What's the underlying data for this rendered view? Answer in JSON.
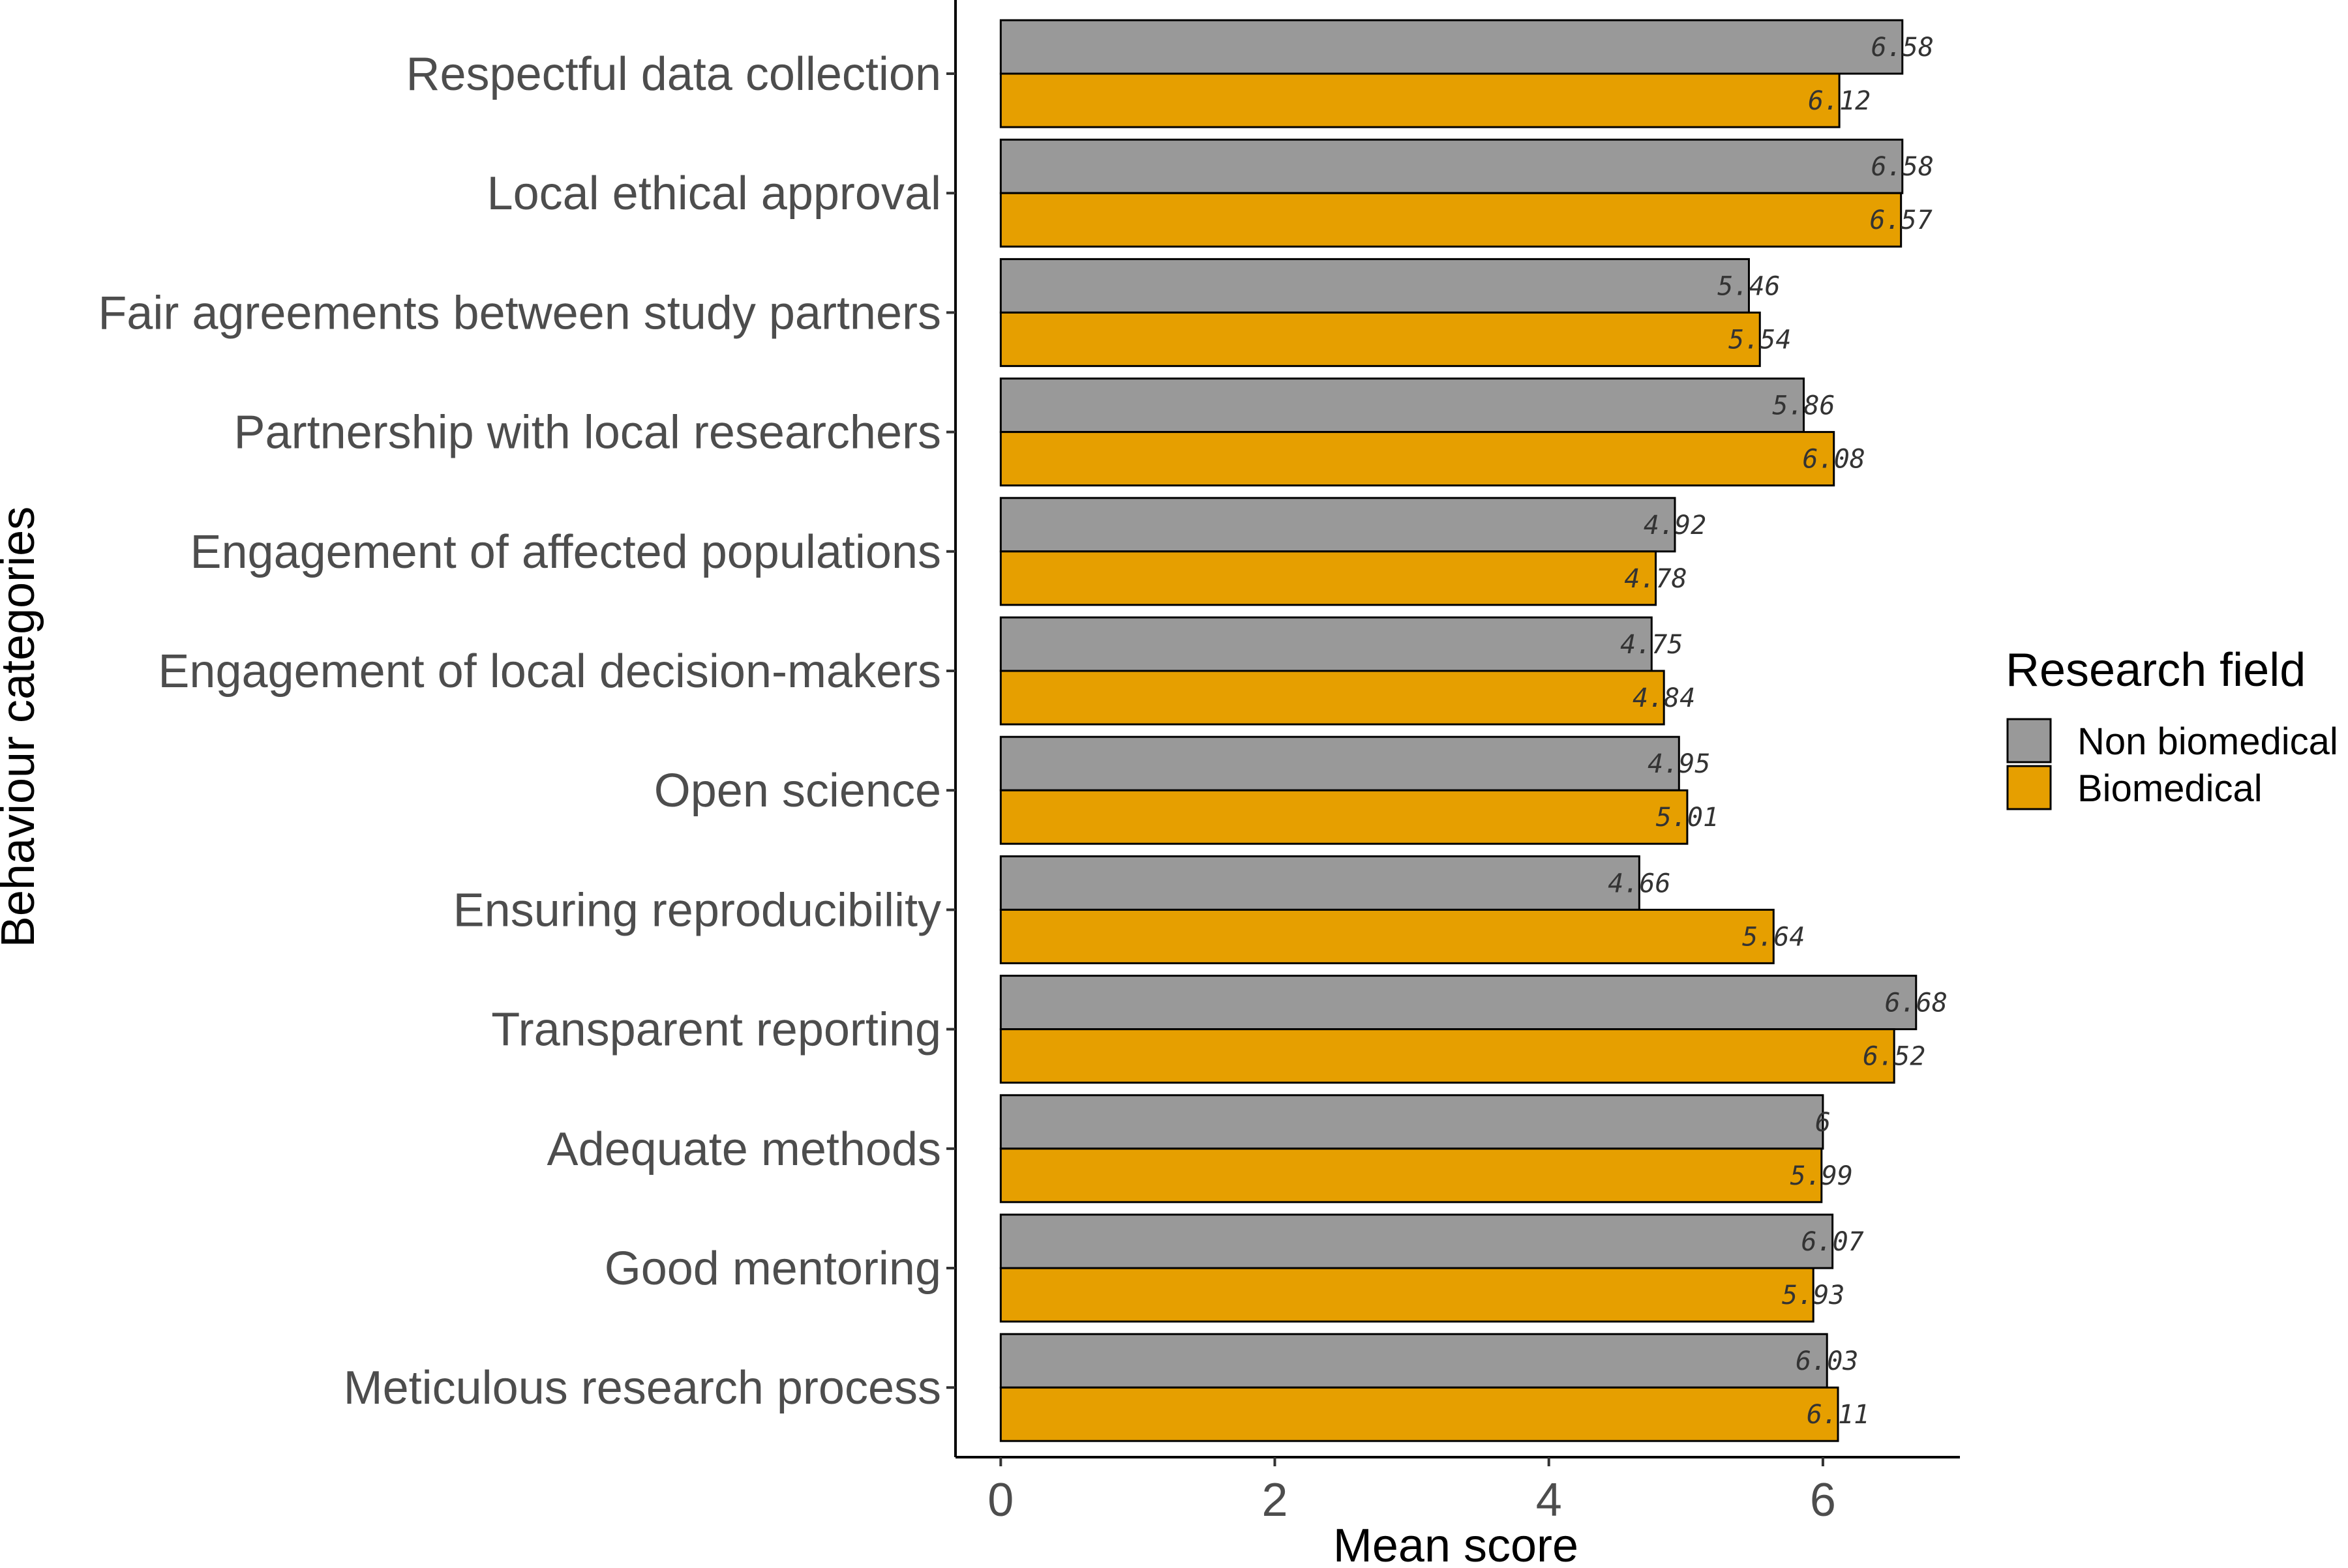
{
  "chart_data": {
    "type": "bar",
    "orientation": "horizontal",
    "title": "",
    "xlabel": "Mean score",
    "ylabel": "Behaviour categories",
    "xlim": [
      -0.33,
      7.0
    ],
    "xticks": [
      "0",
      "2",
      "4",
      "6"
    ],
    "grid": false,
    "legend_position": "right",
    "legend_title": "Research field",
    "categories": [
      "Respectful data collection",
      "Local ethical approval",
      "Fair agreements between study partners",
      "Partnership with local researchers",
      "Engagement of affected populations",
      "Engagement of local decision-makers",
      "Open science",
      "Ensuring reproducibility",
      "Transparent reporting",
      "Adequate methods",
      "Good mentoring",
      "Meticulous research process"
    ],
    "series": [
      {
        "name": "Non biomedical",
        "color": "#999999",
        "values": [
          6.58,
          6.58,
          5.46,
          5.86,
          4.92,
          4.75,
          4.95,
          4.66,
          6.68,
          6,
          6.07,
          6.03
        ],
        "labels": [
          "6.58",
          "6.58",
          "5.46",
          "5.86",
          "4.92",
          "4.75",
          "4.95",
          "4.66",
          "6.68",
          "6",
          "6.07",
          "6.03"
        ]
      },
      {
        "name": "Biomedical",
        "color": "#E69F00",
        "values": [
          6.12,
          6.57,
          5.54,
          6.08,
          4.78,
          4.84,
          5.01,
          5.64,
          6.52,
          5.99,
          5.93,
          6.11
        ],
        "labels": [
          "6.12",
          "6.57",
          "5.54",
          "6.08",
          "4.78",
          "4.84",
          "5.01",
          "5.64",
          "6.52",
          "5.99",
          "5.93",
          "6.11"
        ]
      }
    ]
  }
}
